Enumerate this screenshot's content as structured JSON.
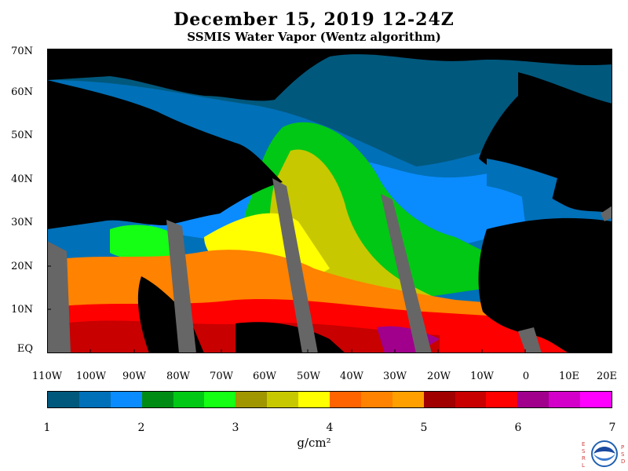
{
  "title": "December 15, 2019 12-24Z",
  "subtitle": "SSMIS Water Vapor (Wentz algorithm)",
  "lat_labels": [
    "70N",
    "60N",
    "50N",
    "40N",
    "30N",
    "20N",
    "10N",
    "EQ"
  ],
  "lon_labels": [
    "110W",
    "100W",
    "90W",
    "80W",
    "70W",
    "60W",
    "50W",
    "40W",
    "30W",
    "20W",
    "10W",
    "0",
    "10E",
    "20E"
  ],
  "colorbar": {
    "min": 1,
    "max": 7,
    "ticks": [
      "1",
      "2",
      "3",
      "4",
      "5",
      "6",
      "7"
    ],
    "units": "g/cm²",
    "colors": [
      "#00587d",
      "#0070b8",
      "#0a8cff",
      "#008c14",
      "#00c814",
      "#14ff14",
      "#a09600",
      "#c8c800",
      "#ffff00",
      "#ff6400",
      "#ff8200",
      "#ffa000",
      "#a00000",
      "#c80000",
      "#ff0000",
      "#a0008c",
      "#d200c8",
      "#ff00ff"
    ]
  },
  "logo": {
    "left_letters": [
      "E",
      "S",
      "R",
      "L"
    ],
    "right_letters": [
      "P",
      "S",
      "D"
    ],
    "name": "noaa-logo"
  },
  "map": {
    "lon_range": [
      -110,
      20
    ],
    "lat_range": [
      0,
      70
    ],
    "land_color": "#000000",
    "missing_color": "#666666"
  }
}
